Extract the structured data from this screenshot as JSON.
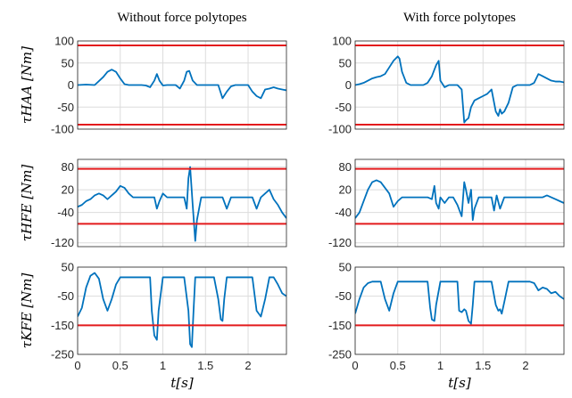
{
  "chart_data": {
    "type": "line",
    "column_titles": [
      "Without force polytopes",
      "With force polytopes"
    ],
    "xlabel": "t[s]",
    "xlim": [
      0,
      2.45
    ],
    "xticks": [
      "0",
      "0.5",
      "1",
      "1.5",
      "2"
    ],
    "xtick_values": [
      0,
      0.5,
      1,
      1.5,
      2
    ],
    "grid": true,
    "colors": {
      "trace": "#0072bd",
      "limit": "#e31a1c"
    },
    "rows": [
      {
        "ylabel": "τHAA [Nm]",
        "ylim": [
          -100,
          100
        ],
        "yticks": [
          "100",
          "50",
          "0",
          "-50",
          "-100"
        ],
        "ytick_values": [
          100,
          50,
          0,
          -50,
          -100
        ],
        "limits": [
          90,
          -90
        ],
        "panels": [
          {
            "x": [
              0,
              0.1,
              0.2,
              0.3,
              0.35,
              0.4,
              0.45,
              0.5,
              0.55,
              0.6,
              0.65,
              0.7,
              0.75,
              0.8,
              0.85,
              0.9,
              0.93,
              0.96,
              1.0,
              1.05,
              1.1,
              1.15,
              1.2,
              1.25,
              1.28,
              1.31,
              1.35,
              1.4,
              1.45,
              1.5,
              1.55,
              1.6,
              1.65,
              1.7,
              1.75,
              1.8,
              1.85,
              1.9,
              1.95,
              2.0,
              2.05,
              2.1,
              2.15,
              2.2,
              2.25,
              2.3,
              2.35,
              2.4,
              2.45
            ],
            "y": [
              0,
              1,
              0,
              18,
              30,
              35,
              30,
              15,
              2,
              0,
              0,
              0,
              0,
              -1,
              -5,
              10,
              25,
              10,
              -1,
              0,
              0,
              0,
              -8,
              10,
              30,
              32,
              10,
              0,
              0,
              0,
              0,
              0,
              0,
              -30,
              -15,
              -3,
              0,
              0,
              0,
              0,
              -15,
              -25,
              -30,
              -10,
              -8,
              -5,
              -8,
              -10,
              -12
            ]
          },
          {
            "x": [
              0,
              0.05,
              0.1,
              0.15,
              0.2,
              0.25,
              0.3,
              0.35,
              0.4,
              0.45,
              0.5,
              0.52,
              0.55,
              0.6,
              0.65,
              0.7,
              0.75,
              0.8,
              0.85,
              0.9,
              0.95,
              0.98,
              1.0,
              1.05,
              1.1,
              1.15,
              1.2,
              1.25,
              1.28,
              1.3,
              1.33,
              1.36,
              1.4,
              1.45,
              1.5,
              1.55,
              1.6,
              1.65,
              1.68,
              1.7,
              1.72,
              1.75,
              1.8,
              1.85,
              1.9,
              1.95,
              2.0,
              2.05,
              2.1,
              2.15,
              2.2,
              2.25,
              2.3,
              2.35,
              2.4,
              2.45
            ],
            "y": [
              0,
              2,
              5,
              10,
              15,
              18,
              20,
              25,
              40,
              55,
              65,
              60,
              30,
              5,
              0,
              0,
              0,
              0,
              5,
              20,
              45,
              55,
              10,
              -5,
              0,
              0,
              0,
              -10,
              -85,
              -80,
              -75,
              -50,
              -35,
              -30,
              -25,
              -20,
              -10,
              -60,
              -70,
              -55,
              -65,
              -60,
              -40,
              -5,
              0,
              0,
              0,
              0,
              5,
              25,
              20,
              15,
              10,
              8,
              8,
              6
            ]
          }
        ]
      },
      {
        "ylabel": "τHFE [Nm]",
        "ylim": [
          -130,
          100
        ],
        "yticks": [
          "80",
          "20",
          "-40",
          "-120"
        ],
        "ytick_values": [
          80,
          20,
          -40,
          -120
        ],
        "limits": [
          75,
          -70
        ],
        "panels": [
          {
            "x": [
              0,
              0.05,
              0.1,
              0.15,
              0.2,
              0.25,
              0.3,
              0.35,
              0.4,
              0.45,
              0.5,
              0.55,
              0.6,
              0.65,
              0.7,
              0.75,
              0.8,
              0.85,
              0.9,
              0.93,
              0.96,
              1.0,
              1.05,
              1.1,
              1.15,
              1.2,
              1.25,
              1.28,
              1.3,
              1.32,
              1.35,
              1.38,
              1.4,
              1.45,
              1.5,
              1.55,
              1.6,
              1.65,
              1.7,
              1.75,
              1.8,
              1.85,
              1.9,
              1.95,
              2.0,
              2.05,
              2.1,
              2.15,
              2.2,
              2.25,
              2.3,
              2.35,
              2.4,
              2.45
            ],
            "y": [
              -25,
              -20,
              -10,
              -5,
              5,
              10,
              5,
              -5,
              5,
              15,
              30,
              25,
              10,
              0,
              0,
              0,
              0,
              0,
              0,
              -30,
              -10,
              10,
              0,
              0,
              0,
              0,
              0,
              -30,
              50,
              80,
              -20,
              -115,
              -60,
              0,
              0,
              0,
              0,
              0,
              0,
              -30,
              0,
              0,
              0,
              0,
              0,
              0,
              -30,
              0,
              10,
              20,
              -5,
              -20,
              -40,
              -55
            ]
          },
          {
            "x": [
              0,
              0.05,
              0.1,
              0.15,
              0.2,
              0.25,
              0.3,
              0.35,
              0.4,
              0.45,
              0.5,
              0.55,
              0.6,
              0.65,
              0.7,
              0.75,
              0.8,
              0.85,
              0.9,
              0.93,
              0.95,
              0.98,
              1.0,
              1.05,
              1.1,
              1.15,
              1.2,
              1.25,
              1.28,
              1.3,
              1.33,
              1.36,
              1.38,
              1.4,
              1.45,
              1.5,
              1.55,
              1.6,
              1.63,
              1.66,
              1.7,
              1.75,
              1.8,
              1.85,
              1.9,
              1.95,
              2.0,
              2.05,
              2.1,
              2.15,
              2.2,
              2.25,
              2.3,
              2.35,
              2.4,
              2.45
            ],
            "y": [
              -55,
              -40,
              -10,
              20,
              40,
              45,
              40,
              25,
              10,
              -25,
              -10,
              0,
              0,
              0,
              0,
              0,
              0,
              0,
              -5,
              30,
              -15,
              -30,
              0,
              -15,
              0,
              0,
              -20,
              -50,
              40,
              20,
              -15,
              20,
              -60,
              -30,
              0,
              0,
              0,
              0,
              -35,
              5,
              -30,
              0,
              0,
              0,
              0,
              0,
              0,
              0,
              0,
              0,
              0,
              5,
              0,
              -5,
              -10,
              -15
            ]
          }
        ]
      },
      {
        "ylabel": "τKFE [Nm]",
        "ylim": [
          -250,
          50
        ],
        "yticks": [
          "50",
          "-50",
          "-150",
          "-250"
        ],
        "ytick_values": [
          50,
          -50,
          -150,
          -250
        ],
        "limits": [
          -150
        ],
        "panels": [
          {
            "x": [
              0,
              0.05,
              0.1,
              0.15,
              0.2,
              0.25,
              0.3,
              0.35,
              0.4,
              0.45,
              0.5,
              0.6,
              0.7,
              0.8,
              0.85,
              0.87,
              0.9,
              0.93,
              0.95,
              1.0,
              1.05,
              1.1,
              1.15,
              1.2,
              1.25,
              1.3,
              1.32,
              1.34,
              1.36,
              1.38,
              1.4,
              1.45,
              1.5,
              1.55,
              1.6,
              1.65,
              1.68,
              1.7,
              1.72,
              1.75,
              1.8,
              1.9,
              2.0,
              2.05,
              2.1,
              2.15,
              2.2,
              2.25,
              2.3,
              2.35,
              2.4,
              2.45
            ],
            "y": [
              -120,
              -90,
              -20,
              20,
              30,
              10,
              -60,
              -100,
              -60,
              -10,
              15,
              15,
              15,
              15,
              15,
              -100,
              -185,
              -200,
              -100,
              15,
              15,
              15,
              15,
              15,
              15,
              -100,
              -215,
              -225,
              -100,
              15,
              15,
              15,
              15,
              15,
              15,
              -60,
              -130,
              -135,
              -60,
              15,
              15,
              15,
              15,
              15,
              -100,
              -120,
              -60,
              15,
              15,
              -10,
              -40,
              -50
            ]
          },
          {
            "x": [
              0,
              0.05,
              0.1,
              0.15,
              0.2,
              0.25,
              0.3,
              0.35,
              0.4,
              0.45,
              0.5,
              0.6,
              0.7,
              0.8,
              0.85,
              0.88,
              0.9,
              0.93,
              0.95,
              1.0,
              1.05,
              1.1,
              1.15,
              1.2,
              1.22,
              1.25,
              1.28,
              1.3,
              1.33,
              1.36,
              1.38,
              1.4,
              1.45,
              1.5,
              1.55,
              1.6,
              1.65,
              1.68,
              1.7,
              1.72,
              1.75,
              1.8,
              1.85,
              1.9,
              1.95,
              2.0,
              2.05,
              2.1,
              2.15,
              2.2,
              2.25,
              2.3,
              2.35,
              2.4,
              2.45
            ],
            "y": [
              -110,
              -60,
              -20,
              -5,
              0,
              0,
              0,
              -60,
              -100,
              -40,
              0,
              0,
              0,
              0,
              0,
              -90,
              -130,
              -135,
              -80,
              0,
              0,
              0,
              0,
              0,
              -100,
              -105,
              -95,
              -100,
              -135,
              -145,
              -80,
              0,
              0,
              0,
              0,
              0,
              -80,
              -100,
              -95,
              -110,
              -70,
              0,
              0,
              0,
              0,
              0,
              0,
              -5,
              -30,
              -20,
              -25,
              -40,
              -35,
              -50,
              -60
            ]
          }
        ]
      }
    ]
  }
}
